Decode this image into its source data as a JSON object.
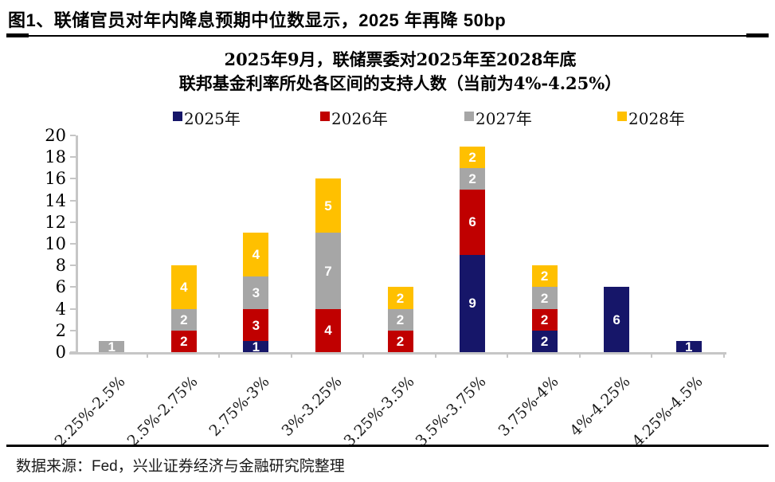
{
  "header": {
    "title": "图1、联储官员对年内降息预期中位数显示，2025 年再降 50bp"
  },
  "chart_data": {
    "type": "bar",
    "stacked": true,
    "title_line1": "2025年9月，联储票委对2025年至2028年底",
    "title_line2": "联邦基金利率所处各区间的支持人数（当前为4%-4.25%）",
    "categories": [
      "2.25%-2.5%",
      "2.5%-2.75%",
      "2.75%-3%",
      "3%-3.25%",
      "3.25%-3.5%",
      "3.5%-3.75%",
      "3.75%-4%",
      "4%-4.25%",
      "4.25%-4.5%"
    ],
    "series": [
      {
        "name": "2025年",
        "color": "#161669",
        "values": [
          0,
          0,
          1,
          0,
          0,
          9,
          2,
          6,
          1
        ]
      },
      {
        "name": "2026年",
        "color": "#C00000",
        "values": [
          0,
          2,
          3,
          4,
          2,
          6,
          2,
          0,
          0
        ]
      },
      {
        "name": "2027年",
        "color": "#A6A6A6",
        "values": [
          1,
          2,
          3,
          7,
          2,
          2,
          2,
          0,
          0
        ]
      },
      {
        "name": "2028年",
        "color": "#FFC000",
        "values": [
          0,
          4,
          4,
          5,
          2,
          2,
          2,
          0,
          0
        ]
      }
    ],
    "totals": [
      1,
      8,
      11,
      16,
      6,
      19,
      8,
      6,
      1
    ],
    "ylim": [
      0,
      20
    ],
    "ytick_step": 2,
    "yticks": [
      0,
      2,
      4,
      6,
      8,
      10,
      12,
      14,
      16,
      18,
      20
    ],
    "grid": false,
    "legend_position": "top",
    "bar_label_color": "#FFFFFF",
    "axis_color": "#C6C6C6"
  },
  "footer": {
    "source": "数据来源：Fed，兴业证券经济与金融研究院整理"
  }
}
